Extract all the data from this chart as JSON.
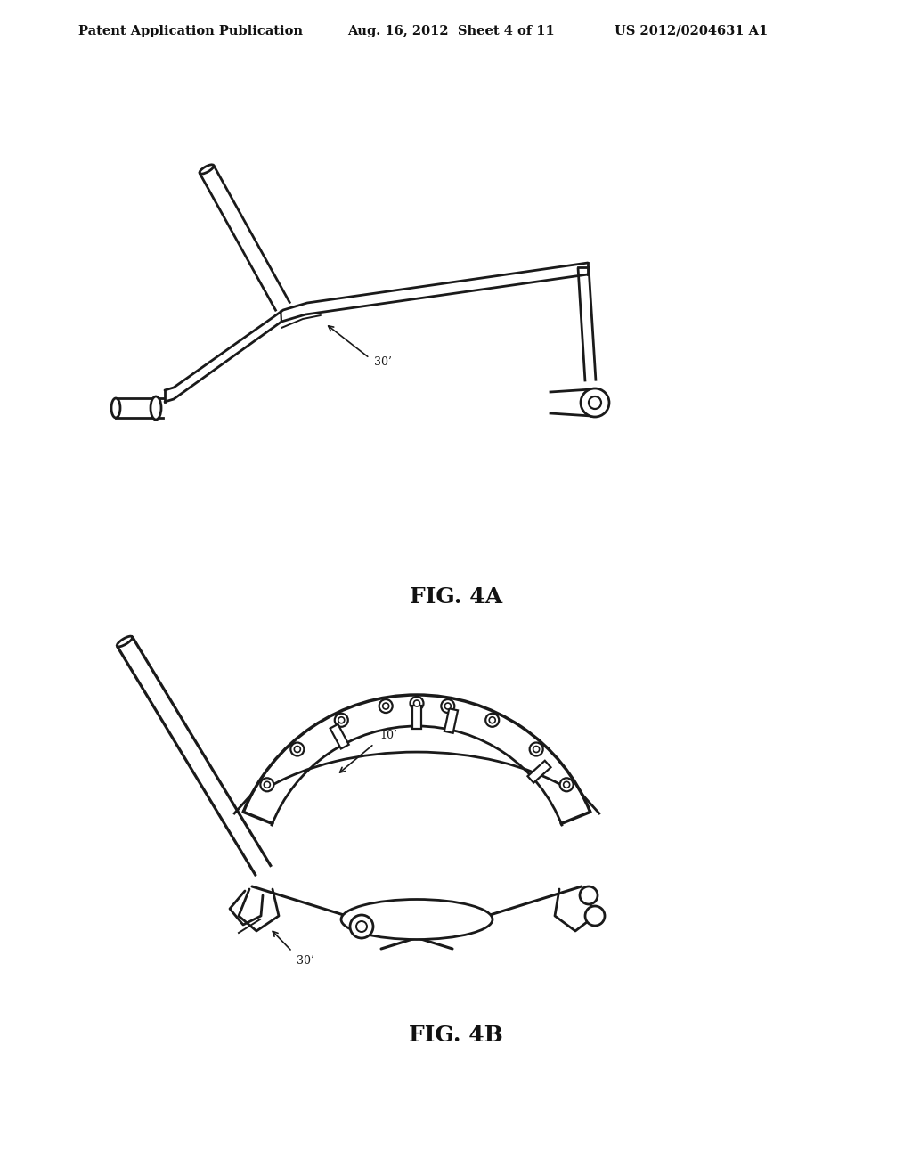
{
  "background_color": "#ffffff",
  "header_left": "Patent Application Publication",
  "header_mid": "Aug. 16, 2012  Sheet 4 of 11",
  "header_right": "US 2012/0204631 A1",
  "fig4a_label": "FIG. 4A",
  "fig4b_label": "FIG. 4B",
  "ref_30_prime_4a": "30’",
  "ref_30_prime_4b": "30’",
  "ref_10_prime": "10’",
  "line_color": "#1a1a1a",
  "lw_main": 2.0
}
